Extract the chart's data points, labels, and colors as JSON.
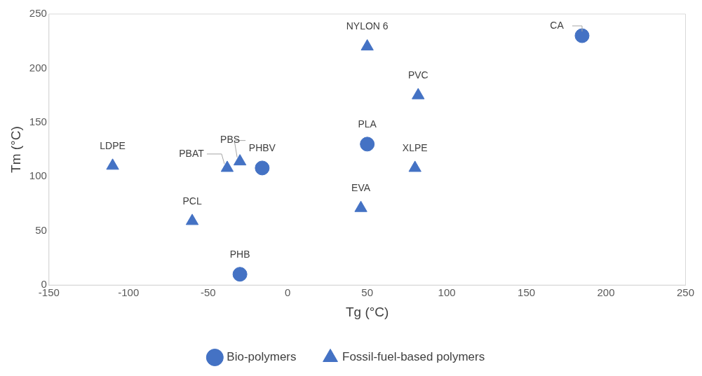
{
  "chart_data": {
    "type": "scatter",
    "xlabel": "Tg (°C)",
    "ylabel": "Tm (°C)",
    "xlim": [
      -150,
      250
    ],
    "xticks": [
      -150,
      -100,
      -50,
      0,
      50,
      100,
      150,
      200,
      250
    ],
    "ylim": [
      0,
      250
    ],
    "yticks": [
      0,
      50,
      100,
      150,
      200,
      250
    ],
    "grid": false,
    "legend": "bottom",
    "series": [
      {
        "name": "Bio-polymers",
        "color": "#4472c4",
        "marker": "circle",
        "x": [
          185,
          50,
          -16,
          -30
        ],
        "values": [
          230,
          130,
          108,
          10
        ]
      },
      {
        "name": "Fossil-fuel-based polymers",
        "color": "#4472c4",
        "marker": "triangle",
        "x": [
          50,
          82,
          80,
          46,
          -30,
          -38,
          -110,
          -60
        ],
        "values": [
          220,
          175,
          108,
          71,
          114,
          108,
          110,
          59
        ]
      }
    ],
    "annotations": [
      {
        "text": "CA",
        "x": 185,
        "y": 230
      },
      {
        "text": "PLA",
        "x": 50,
        "y": 130
      },
      {
        "text": "PHBV",
        "x": -16,
        "y": 108
      },
      {
        "text": "PHB",
        "x": -30,
        "y": 10
      },
      {
        "text": "NYLON 6",
        "x": 50,
        "y": 220
      },
      {
        "text": "PVC",
        "x": 82,
        "y": 175
      },
      {
        "text": "XLPE",
        "x": 80,
        "y": 108
      },
      {
        "text": "EVA",
        "x": 46,
        "y": 71
      },
      {
        "text": "PBS",
        "x": -30,
        "y": 114
      },
      {
        "text": "PBAT",
        "x": -38,
        "y": 108
      },
      {
        "text": "LDPE",
        "x": -110,
        "y": 110
      },
      {
        "text": "PCL",
        "x": -60,
        "y": 59
      }
    ]
  }
}
